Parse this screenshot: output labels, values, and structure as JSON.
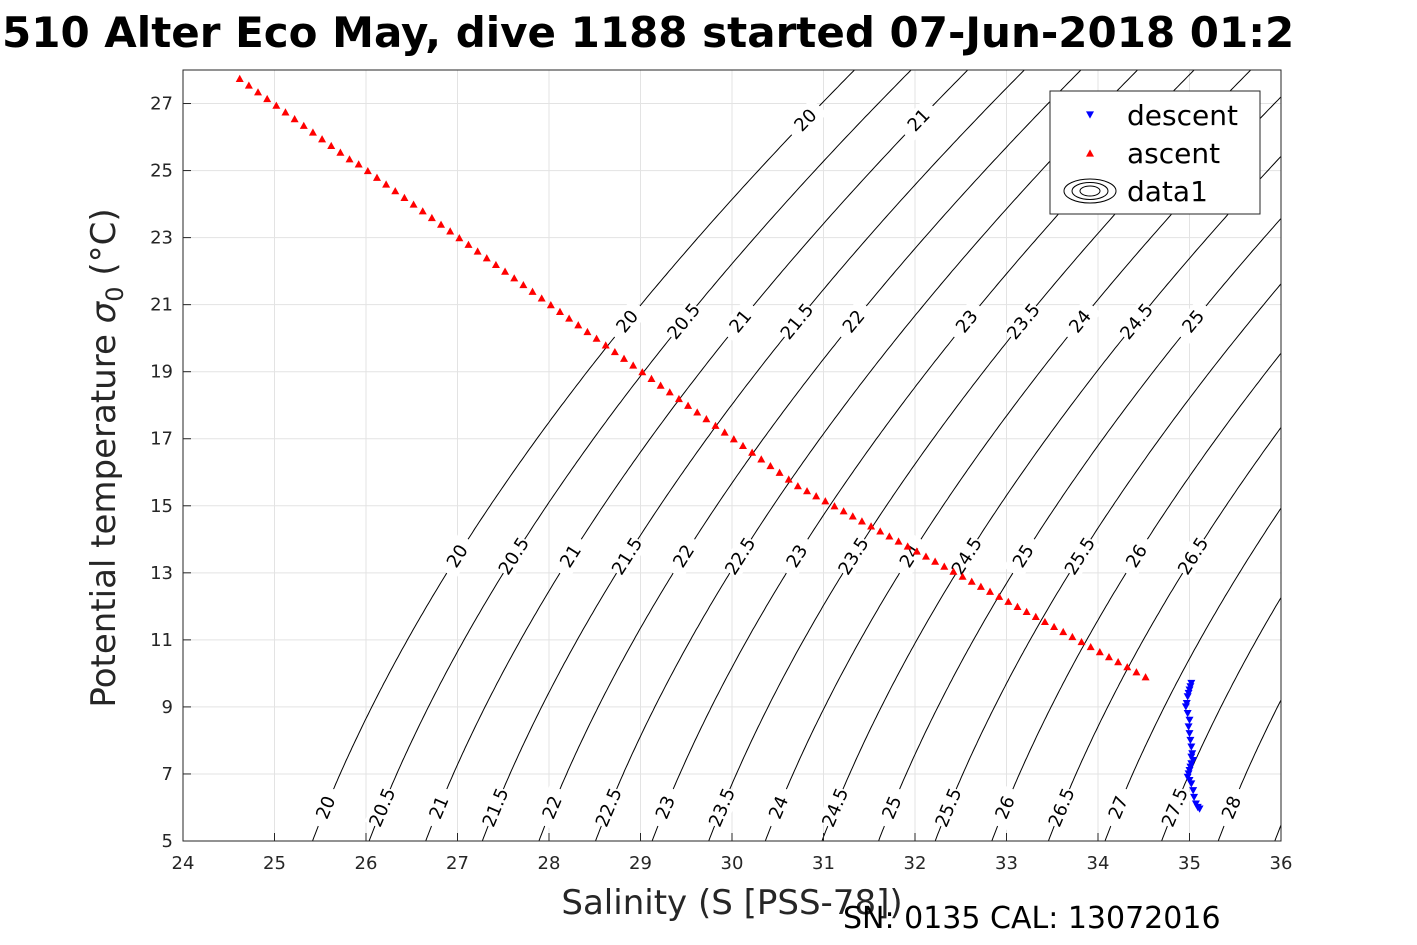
{
  "chart_data": {
    "type": "scatter",
    "title": "510 Alter Eco May, dive 1188 started 07-Jun-2018 01:2",
    "xlabel": "Salinity (S [PSS-78])",
    "ylabel_main": "Potential temperature ",
    "ylabel_sym": "σ",
    "ylabel_sub": "0",
    "ylabel_unit": " (°C)",
    "xlim": [
      24,
      36
    ],
    "ylim": [
      5,
      28
    ],
    "grid": true,
    "x_ticks": [
      24,
      25,
      26,
      27,
      28,
      29,
      30,
      31,
      32,
      33,
      34,
      35,
      36
    ],
    "y_ticks": [
      5,
      7,
      9,
      11,
      13,
      15,
      17,
      19,
      21,
      23,
      25,
      27
    ],
    "legend": {
      "position": "top-right",
      "entries": [
        {
          "label": "descent",
          "color": "#0000ff",
          "marker": "triangle-down"
        },
        {
          "label": "ascent",
          "color": "#ff0000",
          "marker": "triangle-up"
        },
        {
          "label": "data1",
          "color": "#000000",
          "marker": "contour"
        }
      ]
    },
    "contours": [
      {
        "sigma": 20,
        "labels": [
          "20",
          "20",
          "20",
          "20"
        ]
      },
      {
        "sigma": 20.5,
        "labels": [
          "20.5",
          "20.5",
          "20.5"
        ]
      },
      {
        "sigma": 21,
        "labels": [
          "21",
          "21",
          "21",
          "21"
        ]
      },
      {
        "sigma": 21.5,
        "labels": [
          "21.5",
          "21.5",
          "21.5"
        ]
      },
      {
        "sigma": 22,
        "labels": [
          "22",
          "22",
          "22"
        ]
      },
      {
        "sigma": 22.5,
        "labels": [
          "22.5",
          "22.5"
        ]
      },
      {
        "sigma": 23,
        "labels": [
          "23",
          "23",
          "23"
        ]
      },
      {
        "sigma": 23.5,
        "labels": [
          "23.5",
          "23.5",
          "23.5"
        ]
      },
      {
        "sigma": 24,
        "labels": [
          "24",
          "24",
          "24"
        ]
      },
      {
        "sigma": 24.5,
        "labels": [
          "24.5",
          "24.5",
          "24.5"
        ]
      },
      {
        "sigma": 25,
        "labels": [
          "25",
          "25",
          "25"
        ]
      },
      {
        "sigma": 25.5,
        "labels": [
          "25.5",
          "25.5"
        ]
      },
      {
        "sigma": 26,
        "labels": [
          "26",
          "26"
        ]
      },
      {
        "sigma": 26.5,
        "labels": [
          "26.5",
          "26.5"
        ]
      },
      {
        "sigma": 27,
        "labels": [
          "27"
        ]
      },
      {
        "sigma": 27.5,
        "labels": [
          "27.5"
        ]
      },
      {
        "sigma": 28,
        "labels": [
          "28"
        ]
      },
      {
        "sigma": 28.5,
        "labels": []
      },
      {
        "sigma": 29,
        "labels": []
      }
    ],
    "series": [
      {
        "name": "descent",
        "color": "#0000ff",
        "marker": "triangle-down",
        "points": [
          [
            35.02,
            9.7
          ],
          [
            35.01,
            9.6
          ],
          [
            35.0,
            9.5
          ],
          [
            34.99,
            9.4
          ],
          [
            34.98,
            9.3
          ],
          [
            34.97,
            9.1
          ],
          [
            34.96,
            9.0
          ],
          [
            34.98,
            8.8
          ],
          [
            35.0,
            8.6
          ],
          [
            34.99,
            8.4
          ],
          [
            35.0,
            8.2
          ],
          [
            35.01,
            8.0
          ],
          [
            35.02,
            7.8
          ],
          [
            35.03,
            7.6
          ],
          [
            35.02,
            7.5
          ],
          [
            35.04,
            7.4
          ],
          [
            35.02,
            7.3
          ],
          [
            35.01,
            7.2
          ],
          [
            35.0,
            7.1
          ],
          [
            34.99,
            7.0
          ],
          [
            34.98,
            6.9
          ],
          [
            35.0,
            6.8
          ],
          [
            35.02,
            6.7
          ],
          [
            35.04,
            6.5
          ],
          [
            35.05,
            6.3
          ],
          [
            35.07,
            6.1
          ],
          [
            35.09,
            6.0
          ],
          [
            35.11,
            5.95
          ]
        ]
      },
      {
        "name": "ascent",
        "color": "#ff0000",
        "marker": "triangle-up",
        "points": [
          [
            24.62,
            27.75
          ],
          [
            24.72,
            27.55
          ],
          [
            24.82,
            27.35
          ],
          [
            24.92,
            27.15
          ],
          [
            25.02,
            26.95
          ],
          [
            25.12,
            26.75
          ],
          [
            25.22,
            26.55
          ],
          [
            25.32,
            26.35
          ],
          [
            25.42,
            26.15
          ],
          [
            25.52,
            25.95
          ],
          [
            25.62,
            25.75
          ],
          [
            25.72,
            25.55
          ],
          [
            25.82,
            25.35
          ],
          [
            25.92,
            25.2
          ],
          [
            26.02,
            25.0
          ],
          [
            26.12,
            24.8
          ],
          [
            26.22,
            24.6
          ],
          [
            26.32,
            24.4
          ],
          [
            26.42,
            24.2
          ],
          [
            26.52,
            24.0
          ],
          [
            26.62,
            23.8
          ],
          [
            26.72,
            23.6
          ],
          [
            26.82,
            23.4
          ],
          [
            26.92,
            23.2
          ],
          [
            27.02,
            23.0
          ],
          [
            27.12,
            22.8
          ],
          [
            27.22,
            22.6
          ],
          [
            27.32,
            22.4
          ],
          [
            27.42,
            22.2
          ],
          [
            27.52,
            22.0
          ],
          [
            27.62,
            21.8
          ],
          [
            27.72,
            21.6
          ],
          [
            27.82,
            21.4
          ],
          [
            27.92,
            21.2
          ],
          [
            28.02,
            21.0
          ],
          [
            28.12,
            20.8
          ],
          [
            28.22,
            20.6
          ],
          [
            28.32,
            20.4
          ],
          [
            28.42,
            20.2
          ],
          [
            28.52,
            20.0
          ],
          [
            28.62,
            19.8
          ],
          [
            28.72,
            19.6
          ],
          [
            28.82,
            19.4
          ],
          [
            28.92,
            19.2
          ],
          [
            29.02,
            19.0
          ],
          [
            29.12,
            18.8
          ],
          [
            29.22,
            18.6
          ],
          [
            29.32,
            18.4
          ],
          [
            29.42,
            18.2
          ],
          [
            29.52,
            18.0
          ],
          [
            29.62,
            17.8
          ],
          [
            29.72,
            17.6
          ],
          [
            29.82,
            17.4
          ],
          [
            29.92,
            17.2
          ],
          [
            30.02,
            17.0
          ],
          [
            30.12,
            16.8
          ],
          [
            30.22,
            16.6
          ],
          [
            30.32,
            16.4
          ],
          [
            30.42,
            16.2
          ],
          [
            30.52,
            16.0
          ],
          [
            30.62,
            15.8
          ],
          [
            30.72,
            15.6
          ],
          [
            30.82,
            15.45
          ],
          [
            30.92,
            15.3
          ],
          [
            31.02,
            15.15
          ],
          [
            31.12,
            15.0
          ],
          [
            31.22,
            14.85
          ],
          [
            31.32,
            14.7
          ],
          [
            31.42,
            14.55
          ],
          [
            31.52,
            14.4
          ],
          [
            31.62,
            14.25
          ],
          [
            31.72,
            14.1
          ],
          [
            31.82,
            13.95
          ],
          [
            31.92,
            13.8
          ],
          [
            32.02,
            13.65
          ],
          [
            32.12,
            13.5
          ],
          [
            32.22,
            13.35
          ],
          [
            32.32,
            13.2
          ],
          [
            32.42,
            13.05
          ],
          [
            32.52,
            12.9
          ],
          [
            32.62,
            12.75
          ],
          [
            32.72,
            12.6
          ],
          [
            32.82,
            12.45
          ],
          [
            32.92,
            12.3
          ],
          [
            33.02,
            12.15
          ],
          [
            33.12,
            12.0
          ],
          [
            33.22,
            11.85
          ],
          [
            33.32,
            11.7
          ],
          [
            33.42,
            11.55
          ],
          [
            33.52,
            11.4
          ],
          [
            33.62,
            11.25
          ],
          [
            33.72,
            11.1
          ],
          [
            33.82,
            10.95
          ],
          [
            33.92,
            10.8
          ],
          [
            34.02,
            10.65
          ],
          [
            34.12,
            10.5
          ],
          [
            34.22,
            10.35
          ],
          [
            34.32,
            10.2
          ],
          [
            34.42,
            10.05
          ],
          [
            34.52,
            9.9
          ]
        ]
      }
    ]
  },
  "footer": {
    "text": "SN: 0135  CAL: 13072016"
  }
}
